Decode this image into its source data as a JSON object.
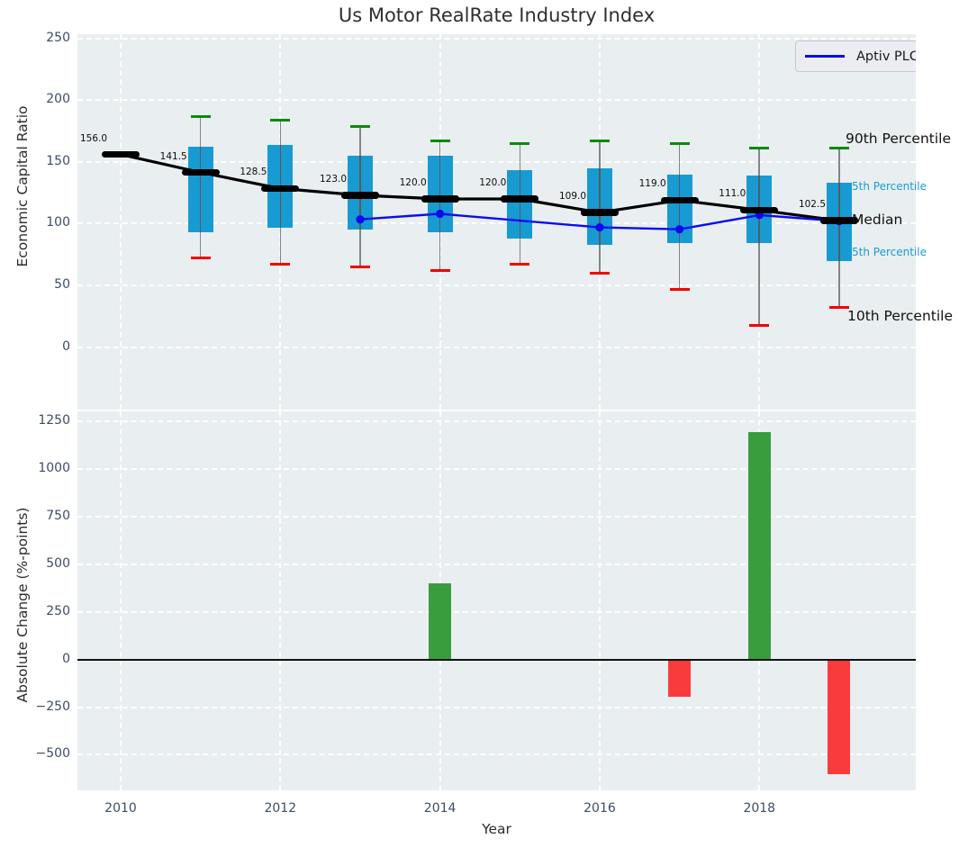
{
  "colors": {
    "axes_bg": "#e9eef0",
    "grid": "#ffffff",
    "box_fill": "#189bd3",
    "whisker": "#858585",
    "cap_high_green": "#0b8a0b",
    "cap_low_red": "#f40000",
    "median_black": "#000000",
    "aptiv_blue": "#0b0bf0",
    "bar_positive_green": "#3a9d3d",
    "bar_negative_red": "#fa3b3c",
    "tick_text": "#3e4d63",
    "percentile_teal": "#1b9ccf"
  },
  "chart_data": [
    {
      "type": "boxplot",
      "title": "Us Motor RealRate Industry Index",
      "ylabel": "Economic Capital Ratio",
      "ylim": [
        -50,
        253
      ],
      "grid": true,
      "yticks": [
        {
          "label": "250",
          "value": 250
        },
        {
          "label": "200",
          "value": 200
        },
        {
          "label": "150",
          "value": 150
        },
        {
          "label": "100",
          "value": 100
        },
        {
          "label": "50",
          "value": 50
        },
        {
          "label": "0",
          "value": 0
        }
      ],
      "x_gridline_years": [
        2010,
        2012,
        2014,
        2016,
        2018
      ],
      "boxes": [
        {
          "year": 2010,
          "median": 156.0,
          "label": "156.0"
        },
        {
          "year": 2011,
          "p90": 187,
          "p75": 162,
          "median": 141.5,
          "p25": 93,
          "p10": 72,
          "label": "141.5"
        },
        {
          "year": 2012,
          "p90": 184,
          "p75": 164,
          "median": 128.5,
          "p25": 97,
          "p10": 67,
          "label": "128.5"
        },
        {
          "year": 2013,
          "p90": 179,
          "p75": 155,
          "median": 123.0,
          "p25": 95,
          "p10": 65,
          "label": "123.0"
        },
        {
          "year": 2014,
          "p90": 167,
          "p75": 155,
          "median": 120.0,
          "p25": 93,
          "p10": 62,
          "label": "120.0"
        },
        {
          "year": 2015,
          "p90": 165,
          "p75": 143,
          "median": 120.0,
          "p25": 88,
          "p10": 67,
          "label": "120.0"
        },
        {
          "year": 2016,
          "p90": 167,
          "p75": 145,
          "median": 109.0,
          "p25": 83,
          "p10": 60,
          "label": "109.0"
        },
        {
          "year": 2017,
          "p90": 165,
          "p75": 140,
          "median": 119.0,
          "p25": 84,
          "p10": 47,
          "label": "119.0"
        },
        {
          "year": 2018,
          "p90": 161,
          "p75": 139,
          "median": 111.0,
          "p25": 84,
          "p10": 18,
          "label": "111.0"
        },
        {
          "year": 2019,
          "p90": 161,
          "p75": 133,
          "median": 102.5,
          "p25": 70,
          "p10": 32,
          "label": "102.5"
        }
      ],
      "series": [
        {
          "name": "Aptiv PLC",
          "points": [
            [
              2013,
              103.5
            ],
            [
              2014,
              108
            ],
            [
              2016,
              97
            ],
            [
              2017,
              95.5
            ],
            [
              2018,
              107
            ],
            [
              2019,
              102
            ]
          ]
        }
      ],
      "legend": {
        "label": "Aptiv PLC",
        "position": "upper right"
      },
      "annotations": {
        "p90": "90th Percentile",
        "p75": "5th Percentile",
        "median": "Median",
        "p25": "5th Percentile",
        "p10": "10th Percentile"
      }
    },
    {
      "type": "bar",
      "ylabel": "Absolute Change (%-points)",
      "xlabel": "Year",
      "ylim": [
        -687,
        1303
      ],
      "grid": true,
      "yticks": [
        {
          "label": "1250",
          "value": 1250
        },
        {
          "label": "1000",
          "value": 1000
        },
        {
          "label": "750",
          "value": 750
        },
        {
          "label": "500",
          "value": 500
        },
        {
          "label": "250",
          "value": 250
        },
        {
          "label": "0",
          "value": 0
        },
        {
          "label": "−250",
          "value": -250
        },
        {
          "label": "−500",
          "value": -500
        }
      ],
      "xticks": [
        {
          "label": "2010",
          "year": 2010
        },
        {
          "label": "2012",
          "year": 2012
        },
        {
          "label": "2014",
          "year": 2014
        },
        {
          "label": "2016",
          "year": 2016
        },
        {
          "label": "2018",
          "year": 2018
        }
      ],
      "x_gridline_years": [
        2010,
        2012,
        2014,
        2016,
        2018
      ],
      "bars": [
        {
          "year": 2014,
          "value": 400
        },
        {
          "year": 2017,
          "value": -195
        },
        {
          "year": 2018,
          "value": 1195
        },
        {
          "year": 2019,
          "value": -600
        }
      ]
    }
  ]
}
